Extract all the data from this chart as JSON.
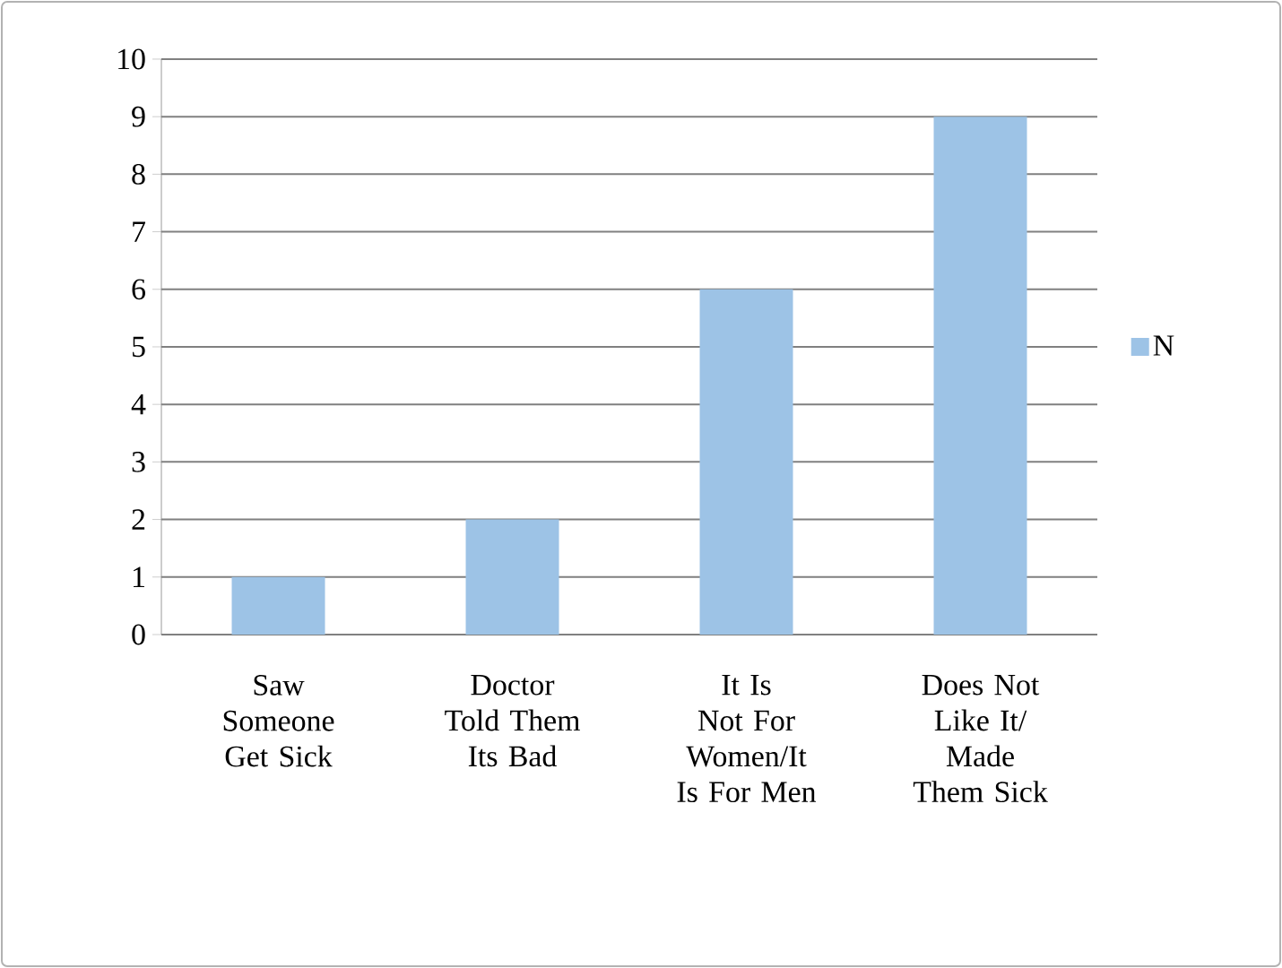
{
  "chart_data": {
    "type": "bar",
    "categories": [
      "Saw Someone Get Sick",
      "Doctor Told Them Its Bad",
      "It Is Not For Women/It Is For Men",
      "Does Not Like It/ Made Them Sick"
    ],
    "series": [
      {
        "name": "N",
        "color": "#9dc3e6",
        "values": [
          1,
          2,
          6,
          9
        ]
      }
    ],
    "ylim": [
      0,
      10
    ],
    "yticks": [
      0,
      1,
      2,
      3,
      4,
      5,
      6,
      7,
      8,
      9,
      10
    ],
    "grid": "y",
    "legend": "right"
  }
}
